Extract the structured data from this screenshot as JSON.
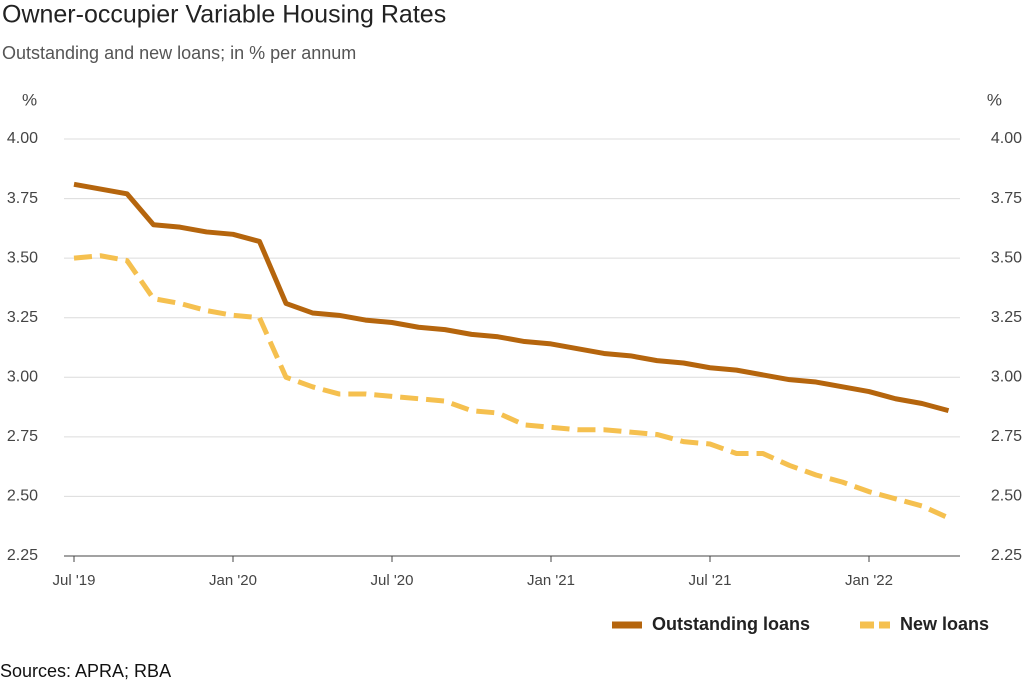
{
  "chart_data": {
    "type": "line",
    "title": "Owner-occupier Variable Housing Rates",
    "subtitle": "Outstanding and new loans; in % per annum",
    "ylabel": "%",
    "source": "Sources: APRA; RBA",
    "categories": [
      "Jul '19",
      null,
      null,
      null,
      null,
      null,
      "Jan '20",
      null,
      null,
      null,
      null,
      null,
      "Jul '20",
      null,
      null,
      null,
      null,
      null,
      "Jan '21",
      null,
      null,
      null,
      null,
      null,
      "Jul '21",
      null,
      null,
      null,
      null,
      null,
      "Jan '22",
      null,
      null,
      null
    ],
    "series": [
      {
        "name": "Outstanding loans",
        "color": "#b5650d",
        "dashed": false,
        "values": [
          3.81,
          3.79,
          3.77,
          3.64,
          3.63,
          3.61,
          3.6,
          3.57,
          3.31,
          3.27,
          3.26,
          3.24,
          3.23,
          3.21,
          3.2,
          3.18,
          3.17,
          3.15,
          3.14,
          3.12,
          3.1,
          3.09,
          3.07,
          3.06,
          3.04,
          3.03,
          3.01,
          2.99,
          2.98,
          2.96,
          2.94,
          2.91,
          2.89,
          2.86
        ]
      },
      {
        "name": "New loans",
        "color": "#f5c04f",
        "dashed": true,
        "values": [
          3.5,
          3.51,
          3.49,
          3.33,
          3.31,
          3.28,
          3.26,
          3.25,
          3.0,
          2.96,
          2.93,
          2.93,
          2.92,
          2.91,
          2.9,
          2.86,
          2.85,
          2.8,
          2.79,
          2.78,
          2.78,
          2.77,
          2.76,
          2.73,
          2.72,
          2.68,
          2.68,
          2.63,
          2.59,
          2.56,
          2.52,
          2.49,
          2.46,
          2.41
        ]
      }
    ],
    "ylim": [
      2.25,
      4.0
    ],
    "yticks": [
      {
        "value": 2.25,
        "label": "2.25"
      },
      {
        "value": 2.5,
        "label": "2.50"
      },
      {
        "value": 2.75,
        "label": "2.75"
      },
      {
        "value": 3.0,
        "label": "3.00"
      },
      {
        "value": 3.25,
        "label": "3.25"
      },
      {
        "value": 3.5,
        "label": "3.50"
      },
      {
        "value": 3.75,
        "label": "3.75"
      },
      {
        "value": 4.0,
        "label": "4.00"
      }
    ],
    "grid": true,
    "legend": "bottom-right"
  }
}
